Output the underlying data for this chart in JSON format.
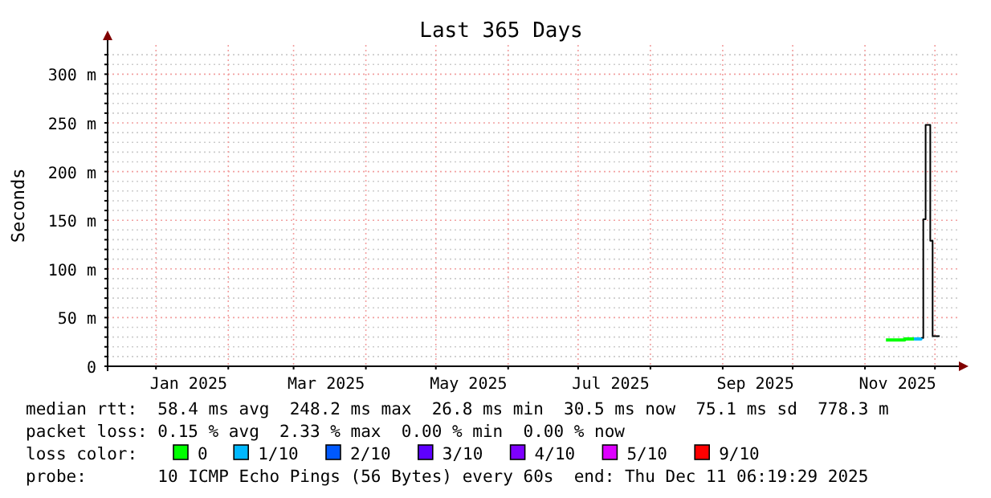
{
  "chart_data": {
    "type": "step",
    "title": "Last 365 Days",
    "ylabel": "Seconds",
    "legend_title": "loss color:",
    "legend": "bottom",
    "grid": true,
    "xlim": [
      "2024-12-11T06:19",
      "2025-12-11T06:19"
    ],
    "xticks": [
      {
        "value": "2025-01-01",
        "label": null
      },
      {
        "value": "2025-01-15",
        "label": "Jan 2025"
      },
      {
        "value": "2025-02-01",
        "label": null
      },
      {
        "value": "2025-03-01",
        "label": null
      },
      {
        "value": "2025-03-15",
        "label": "Mar 2025"
      },
      {
        "value": "2025-04-01",
        "label": null
      },
      {
        "value": "2025-05-01",
        "label": null
      },
      {
        "value": "2025-05-15",
        "label": "May 2025"
      },
      {
        "value": "2025-06-01",
        "label": null
      },
      {
        "value": "2025-07-01",
        "label": null
      },
      {
        "value": "2025-07-15",
        "label": "Jul 2025"
      },
      {
        "value": "2025-08-01",
        "label": null
      },
      {
        "value": "2025-09-01",
        "label": null
      },
      {
        "value": "2025-09-15",
        "label": "Sep 2025"
      },
      {
        "value": "2025-10-01",
        "label": null
      },
      {
        "value": "2025-11-01",
        "label": null
      },
      {
        "value": "2025-11-15",
        "label": "Nov 2025"
      },
      {
        "value": "2025-12-01",
        "label": null
      }
    ],
    "ylim": [
      0,
      330
    ],
    "yticks": [
      {
        "value": 0,
        "label": "0"
      },
      {
        "value": 10,
        "label": null
      },
      {
        "value": 20,
        "label": null
      },
      {
        "value": 30,
        "label": null
      },
      {
        "value": 40,
        "label": null
      },
      {
        "value": 50,
        "label": "50 m"
      },
      {
        "value": 60,
        "label": null
      },
      {
        "value": 70,
        "label": null
      },
      {
        "value": 80,
        "label": null
      },
      {
        "value": 90,
        "label": null
      },
      {
        "value": 100,
        "label": "100 m"
      },
      {
        "value": 110,
        "label": null
      },
      {
        "value": 120,
        "label": null
      },
      {
        "value": 130,
        "label": null
      },
      {
        "value": 140,
        "label": null
      },
      {
        "value": 150,
        "label": "150 m"
      },
      {
        "value": 160,
        "label": null
      },
      {
        "value": 170,
        "label": null
      },
      {
        "value": 180,
        "label": null
      },
      {
        "value": 190,
        "label": null
      },
      {
        "value": 200,
        "label": "200 m"
      },
      {
        "value": 210,
        "label": null
      },
      {
        "value": 220,
        "label": null
      },
      {
        "value": 230,
        "label": null
      },
      {
        "value": 240,
        "label": null
      },
      {
        "value": 250,
        "label": "250 m"
      },
      {
        "value": 260,
        "label": null
      },
      {
        "value": 270,
        "label": null
      },
      {
        "value": 280,
        "label": null
      },
      {
        "value": 290,
        "label": null
      },
      {
        "value": 300,
        "label": "300 m"
      },
      {
        "value": 310,
        "label": null
      },
      {
        "value": 320,
        "label": null
      }
    ],
    "series": [
      {
        "color": "#000000",
        "x": [
          "2025-11-25",
          "2025-11-26",
          "2025-11-27",
          "2025-11-29",
          "2025-11-30",
          "2025-12-03"
        ],
        "values": [
          29,
          151,
          248,
          129,
          31,
          31
        ]
      },
      {
        "name": "0",
        "color": "#00ff00",
        "x": [
          "2025-11-10",
          "2025-11-14",
          "2025-11-18",
          "2025-11-22"
        ],
        "values": [
          27,
          27,
          28,
          28
        ]
      },
      {
        "name": "1/10",
        "color": "#00b8ff",
        "x": [
          "2025-11-22",
          "2025-11-25"
        ],
        "values": [
          28,
          29
        ]
      },
      {
        "name": "2/10",
        "color": "#0059ff"
      },
      {
        "name": "3/10",
        "color": "#5e00ff"
      },
      {
        "name": "4/10",
        "color": "#7e00ff"
      },
      {
        "name": "5/10",
        "color": "#dd00ff"
      },
      {
        "name": "9/10",
        "color": "#ff0000"
      }
    ],
    "annotations": [
      "median rtt:  58.4 ms avg  248.2 ms max  26.8 ms min  30.5 ms now  75.1 ms sd  778.3 m",
      "packet loss: 0.15 % avg  2.33 % max  0.00 % min  0.00 % now",
      "probe:       10 ICMP Echo Pings (56 Bytes) every 60s  end: Thu Dec 11 06:19:29 2025"
    ]
  }
}
